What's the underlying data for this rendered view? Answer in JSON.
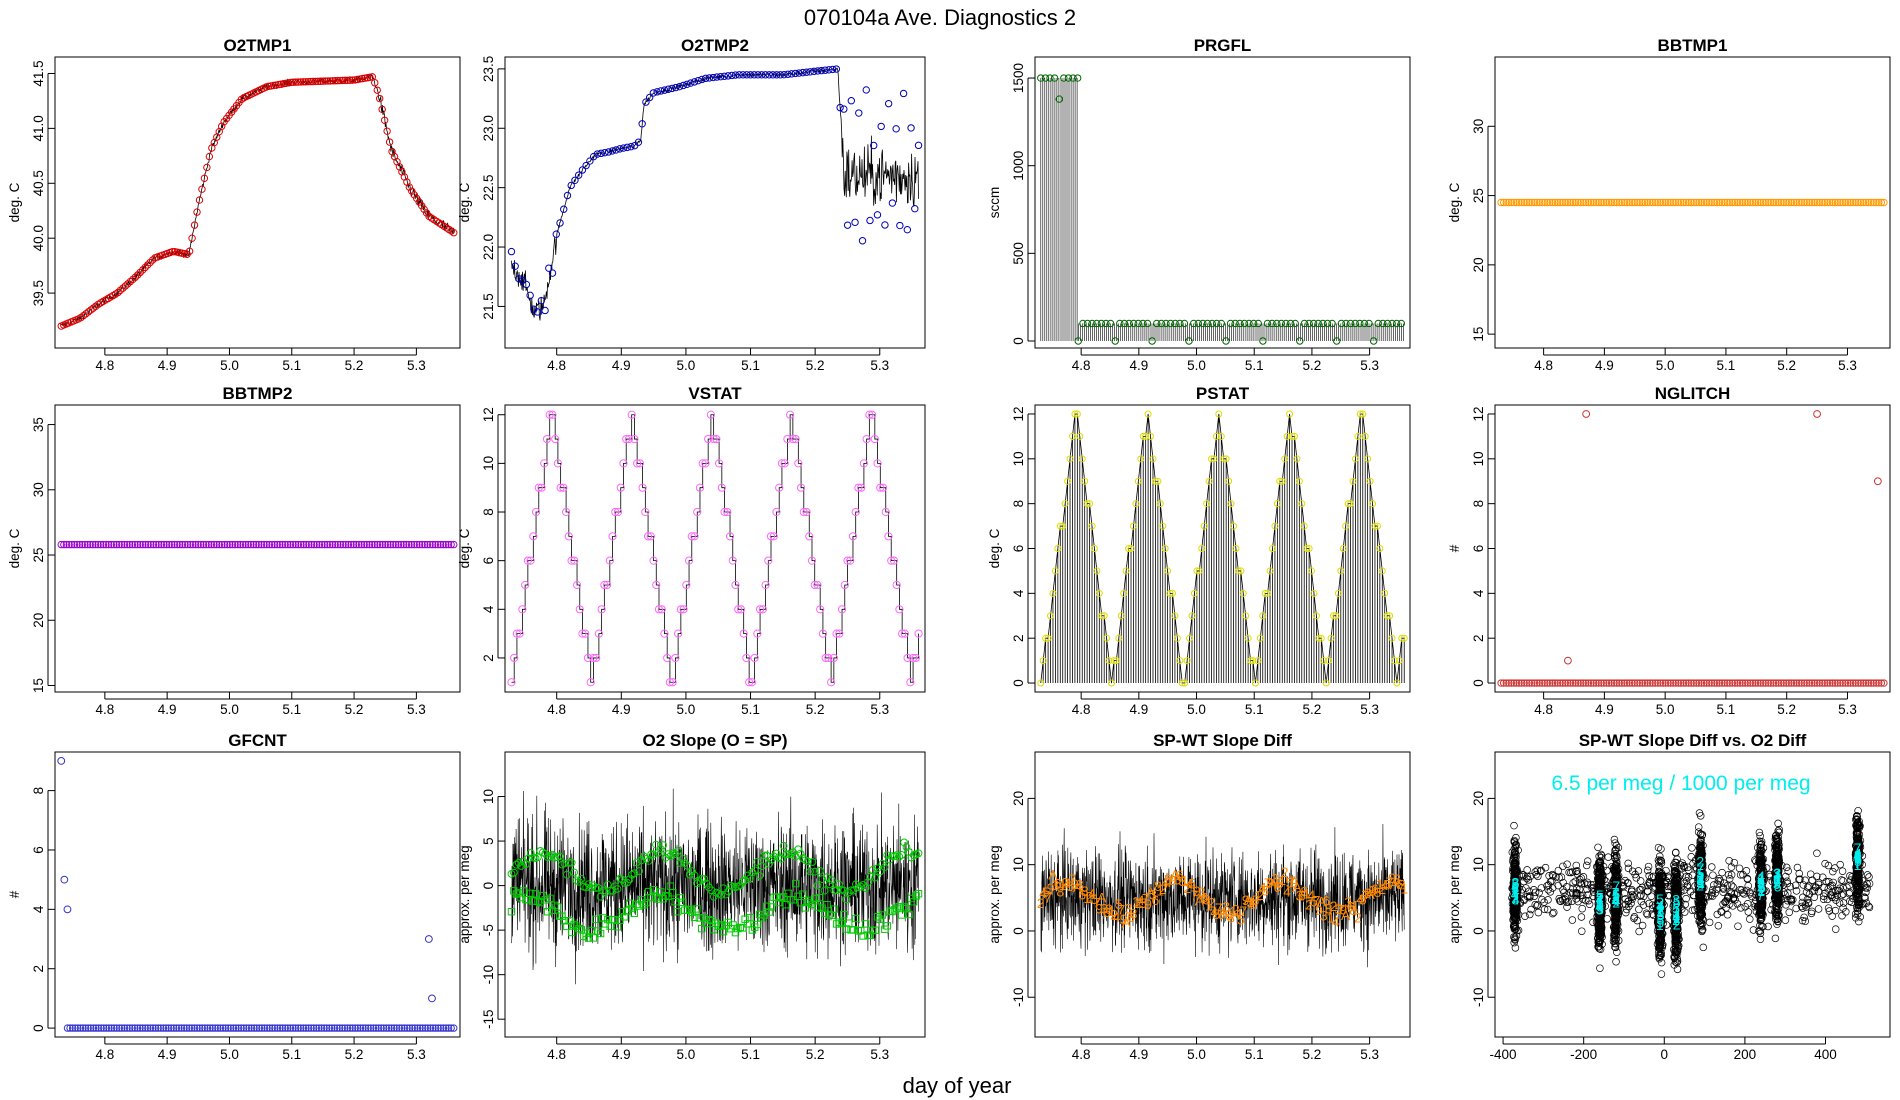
{
  "page_title": "070104a   Ave. Diagnostics 2",
  "xlabel": "day of year",
  "chart_data": [
    {
      "type": "line",
      "title": "O2TMP1",
      "ylabel": "deg. C",
      "xlim": [
        4.72,
        5.37
      ],
      "ylim": [
        39.0,
        41.65
      ],
      "xticks": [
        "4.8",
        "4.9",
        "5.0",
        "5.1",
        "5.2",
        "5.3"
      ],
      "yticks": [
        "39.5",
        "40.0",
        "40.5",
        "41.0",
        "41.5"
      ],
      "color": "#dd0000",
      "marker": "circle",
      "x_range": [
        4.73,
        5.36
      ],
      "series_knots": [
        [
          4.73,
          39.2
        ],
        [
          4.76,
          39.27
        ],
        [
          4.79,
          39.4
        ],
        [
          4.82,
          39.5
        ],
        [
          4.85,
          39.65
        ],
        [
          4.88,
          39.82
        ],
        [
          4.91,
          39.88
        ],
        [
          4.935,
          39.85
        ],
        [
          4.95,
          40.3
        ],
        [
          4.97,
          40.8
        ],
        [
          4.99,
          41.05
        ],
        [
          5.02,
          41.27
        ],
        [
          5.06,
          41.38
        ],
        [
          5.1,
          41.42
        ],
        [
          5.15,
          41.43
        ],
        [
          5.2,
          41.44
        ],
        [
          5.23,
          41.47
        ],
        [
          5.24,
          41.3
        ],
        [
          5.26,
          40.8
        ],
        [
          5.29,
          40.45
        ],
        [
          5.32,
          40.2
        ],
        [
          5.36,
          40.05
        ]
      ]
    },
    {
      "type": "line",
      "title": "O2TMP2",
      "ylabel": "deg. C",
      "xlim": [
        4.72,
        5.37
      ],
      "ylim": [
        21.15,
        23.6
      ],
      "xticks": [
        "4.8",
        "4.9",
        "5.0",
        "5.1",
        "5.2",
        "5.3"
      ],
      "yticks": [
        "21.5",
        "22.0",
        "22.5",
        "23.0",
        "23.5"
      ],
      "color": "#0000bb",
      "marker": "circle",
      "x_range": [
        4.73,
        5.36
      ],
      "series_knots": [
        [
          4.73,
          21.85
        ],
        [
          4.75,
          21.7
        ],
        [
          4.765,
          21.45
        ],
        [
          4.78,
          21.5
        ],
        [
          4.8,
          22.1
        ],
        [
          4.82,
          22.5
        ],
        [
          4.84,
          22.65
        ],
        [
          4.86,
          22.78
        ],
        [
          4.88,
          22.8
        ],
        [
          4.9,
          22.83
        ],
        [
          4.92,
          22.85
        ],
        [
          4.93,
          22.9
        ],
        [
          4.935,
          23.2
        ],
        [
          4.95,
          23.3
        ],
        [
          4.99,
          23.35
        ],
        [
          5.03,
          23.42
        ],
        [
          5.08,
          23.45
        ],
        [
          5.15,
          23.45
        ],
        [
          5.2,
          23.48
        ],
        [
          5.235,
          23.5
        ],
        [
          5.245,
          22.6
        ],
        [
          5.36,
          22.6
        ]
      ]
    },
    {
      "type": "line",
      "title": "PRGFL",
      "ylabel": "sccm",
      "xlim": [
        4.72,
        5.37
      ],
      "ylim": [
        -40,
        1620
      ],
      "xticks": [
        "4.8",
        "4.9",
        "5.0",
        "5.1",
        "5.2",
        "5.3"
      ],
      "yticks": [
        "0",
        "500",
        "1000",
        "1500"
      ],
      "color": "#006600",
      "marker": "circle",
      "high_segment": {
        "x": [
          4.73,
          4.795
        ],
        "value": 1500,
        "dip": 1380
      },
      "low_segment": {
        "x": [
          4.795,
          5.36
        ],
        "value": 100,
        "dip": 0
      }
    },
    {
      "type": "scatter",
      "title": "BBTMP1",
      "ylabel": "deg. C",
      "xlim": [
        4.72,
        5.37
      ],
      "ylim": [
        14,
        35
      ],
      "xticks": [
        "4.8",
        "4.9",
        "5.0",
        "5.1",
        "5.2",
        "5.3"
      ],
      "yticks": [
        "15",
        "20",
        "25",
        "30"
      ],
      "color": "#ff9900",
      "marker": "circle",
      "x_range": [
        4.73,
        5.36
      ],
      "constant": 24.5
    },
    {
      "type": "scatter",
      "title": "BBTMP2",
      "ylabel": "deg. C",
      "xlim": [
        4.72,
        5.37
      ],
      "ylim": [
        14.5,
        36.5
      ],
      "xticks": [
        "4.8",
        "4.9",
        "5.0",
        "5.1",
        "5.2",
        "5.3"
      ],
      "yticks": [
        "15",
        "20",
        "25",
        "30",
        "35"
      ],
      "color": "#9900cc",
      "marker": "circle",
      "x_range": [
        4.73,
        5.36
      ],
      "constant": 25.8
    },
    {
      "type": "line",
      "title": "VSTAT",
      "ylabel": "deg. C",
      "xlim": [
        4.72,
        5.37
      ],
      "ylim": [
        0.6,
        12.4
      ],
      "xticks": [
        "4.8",
        "4.9",
        "5.0",
        "5.1",
        "5.2",
        "5.3"
      ],
      "yticks": [
        "2",
        "4",
        "6",
        "8",
        "10",
        "12"
      ],
      "color": "#ff66ff",
      "marker": "circle",
      "x_range": [
        4.73,
        5.36
      ],
      "cycles": 5.1,
      "min": 1,
      "max": 12
    },
    {
      "type": "line",
      "title": "PSTAT",
      "ylabel": "deg. C",
      "xlim": [
        4.72,
        5.37
      ],
      "ylim": [
        -0.4,
        12.4
      ],
      "xticks": [
        "4.8",
        "4.9",
        "5.0",
        "5.1",
        "5.2",
        "5.3"
      ],
      "yticks": [
        "0",
        "2",
        "4",
        "6",
        "8",
        "10",
        "12"
      ],
      "color": "#dddd00",
      "marker": "circle",
      "x_range": [
        4.73,
        5.36
      ],
      "cycles": 5.1,
      "min": 0,
      "max": 12
    },
    {
      "type": "scatter",
      "title": "NGLITCH",
      "ylabel": "#",
      "xlim": [
        4.72,
        5.37
      ],
      "ylim": [
        -0.4,
        12.4
      ],
      "xticks": [
        "4.8",
        "4.9",
        "5.0",
        "5.1",
        "5.2",
        "5.3"
      ],
      "yticks": [
        "0",
        "2",
        "4",
        "6",
        "8",
        "10",
        "12"
      ],
      "color": "#cc3333",
      "marker": "circle",
      "x_range": [
        4.73,
        5.36
      ],
      "baseline": 0,
      "spikes": [
        [
          4.84,
          1
        ],
        [
          4.87,
          12
        ],
        [
          5.25,
          12
        ],
        [
          5.35,
          9
        ]
      ]
    },
    {
      "type": "scatter",
      "title": "GFCNT",
      "ylabel": "#",
      "xlim": [
        4.72,
        5.37
      ],
      "ylim": [
        -0.3,
        9.3
      ],
      "xticks": [
        "4.8",
        "4.9",
        "5.0",
        "5.1",
        "5.2",
        "5.3"
      ],
      "yticks": [
        "0",
        "2",
        "4",
        "6",
        "8"
      ],
      "color": "#3333cc",
      "marker": "circle",
      "x_range": [
        4.74,
        5.36
      ],
      "baseline": 0,
      "spikes": [
        [
          4.73,
          9
        ],
        [
          4.735,
          5
        ],
        [
          4.74,
          4
        ],
        [
          5.32,
          3
        ],
        [
          5.325,
          1
        ]
      ]
    },
    {
      "type": "line",
      "title": "O2 Slope (O = SP)",
      "ylabel": "approx. per meg",
      "xlim": [
        4.72,
        5.37
      ],
      "ylim": [
        -17,
        15
      ],
      "xticks": [
        "4.8",
        "4.9",
        "5.0",
        "5.1",
        "5.2",
        "5.3"
      ],
      "yticks": [
        "-15",
        "-10",
        "-5",
        "0",
        "5",
        "10"
      ],
      "color": "#000000",
      "marker_color": "#00cc00",
      "x_range": [
        4.73,
        5.36
      ],
      "noise_center": 0,
      "noise_amp": 9,
      "circle_center": 1.5,
      "square_center": -3
    },
    {
      "type": "line",
      "title": "SP-WT Slope Diff",
      "ylabel": "approx. per meg",
      "xlim": [
        4.72,
        5.37
      ],
      "ylim": [
        -16,
        27
      ],
      "xticks": [
        "4.8",
        "4.9",
        "5.0",
        "5.1",
        "5.2",
        "5.3"
      ],
      "yticks": [
        "-10",
        "0",
        "10",
        "20"
      ],
      "color": "#000000",
      "marker_color": "#ff8800",
      "x_range": [
        4.73,
        5.36
      ],
      "noise_center": 5,
      "noise_amp": 9,
      "labels": [
        "2",
        "4",
        "5",
        "7",
        "9",
        "A",
        "3",
        "6",
        "8",
        "1"
      ]
    },
    {
      "type": "scatter",
      "title": "SP-WT Slope Diff vs. O2 Diff",
      "ylabel": "approx. per meg",
      "xlim": [
        -420,
        560
      ],
      "ylim": [
        -16,
        27
      ],
      "xticks": [
        "-400",
        "-200",
        "0",
        "200",
        "400"
      ],
      "yticks": [
        "-10",
        "0",
        "10",
        "20"
      ],
      "color": "#000000",
      "annotation": "6.5 per meg / 1000 per meg",
      "annotation_color": "#00eeee",
      "clusters": [
        [
          -370,
          6
        ],
        [
          -160,
          4
        ],
        [
          -120,
          5
        ],
        [
          -10,
          3
        ],
        [
          30,
          3
        ],
        [
          90,
          8
        ],
        [
          240,
          7
        ],
        [
          280,
          8
        ],
        [
          480,
          11
        ]
      ]
    }
  ]
}
